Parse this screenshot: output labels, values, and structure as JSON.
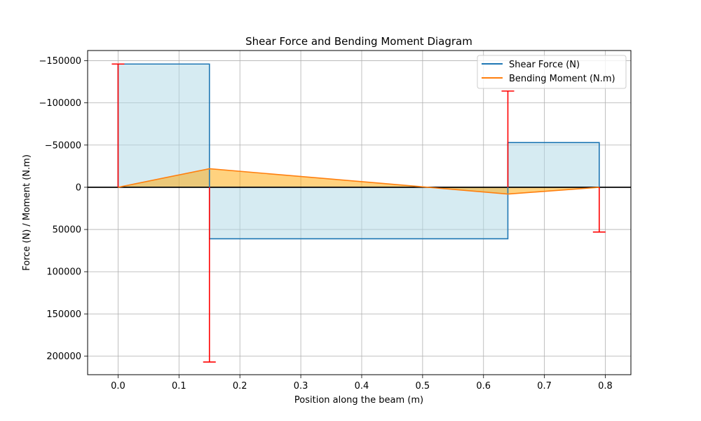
{
  "chart_data": {
    "type": "line",
    "title": "Shear Force and Bending Moment Diagram",
    "xlabel": "Position along the beam (m)",
    "ylabel": "Force (N) / Moment (N.m)",
    "xlim": [
      -0.05,
      0.842
    ],
    "ylim": [
      222000,
      -162000
    ],
    "y_inverted": true,
    "grid": true,
    "legend_position": "upper right",
    "x_ticks": [
      0.0,
      0.1,
      0.2,
      0.3,
      0.4,
      0.5,
      0.6,
      0.7,
      0.8
    ],
    "x_tick_labels": [
      "0.0",
      "0.1",
      "0.2",
      "0.3",
      "0.4",
      "0.5",
      "0.6",
      "0.7",
      "0.8"
    ],
    "y_ticks": [
      -150000,
      -100000,
      -50000,
      0,
      50000,
      100000,
      150000,
      200000
    ],
    "y_tick_labels": [
      "−150000",
      "−100000",
      "−50000",
      "0",
      "50000",
      "100000",
      "150000",
      "200000"
    ],
    "series": [
      {
        "name": "Shear Force (N)",
        "color": "#1f77b4",
        "fill": "#add8e6",
        "x": [
          0.0,
          0.0,
          0.15,
          0.15,
          0.64,
          0.64,
          0.79,
          0.79
        ],
        "y": [
          0,
          -146000,
          -146000,
          61000,
          61000,
          -53000,
          -53000,
          0
        ]
      },
      {
        "name": "Bending Moment (N.m)",
        "color": "#ff7f0e",
        "fill": "#ffa500",
        "x": [
          0.0,
          0.15,
          0.64,
          0.79
        ],
        "y": [
          0,
          -22000,
          8000,
          0
        ]
      }
    ],
    "reactions": {
      "color": "#ff0000",
      "x": [
        0.0,
        0.15,
        0.64,
        0.79
      ],
      "y": [
        -146000,
        207000,
        -114000,
        53000
      ]
    },
    "zero_line_color": "#000000"
  }
}
